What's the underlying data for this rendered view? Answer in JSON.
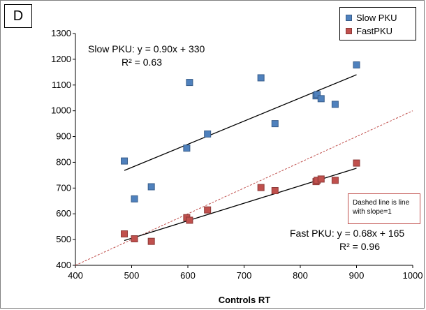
{
  "panel_label": "D",
  "chart_data": {
    "type": "scatter",
    "xlabel": "Controls RT",
    "ylabel": "",
    "xlim": [
      400,
      1000
    ],
    "ylim": [
      400,
      1300
    ],
    "xticks": [
      400,
      500,
      600,
      700,
      800,
      900,
      1000
    ],
    "yticks": [
      400,
      500,
      600,
      700,
      800,
      900,
      1000,
      1100,
      1200,
      1300
    ],
    "grid": false,
    "legend_position": "top-right",
    "series": [
      {
        "name": "Slow PKU",
        "color": "#4f81bd",
        "edge_color": "#385d8a",
        "marker": "square",
        "x": [
          487,
          505,
          535,
          598,
          603,
          635,
          730,
          755,
          828,
          830,
          837,
          862,
          900
        ],
        "y": [
          805,
          658,
          705,
          855,
          1110,
          910,
          1128,
          950,
          1058,
          1063,
          1047,
          1025,
          1178
        ],
        "trendline": {
          "slope": 0.9,
          "intercept": 330,
          "x_range": [
            487,
            900
          ]
        },
        "equation": "Slow PKU: y = 0.90x + 330",
        "r_squared": "R² = 0.63"
      },
      {
        "name": "FastPKU",
        "color": "#c0504d",
        "edge_color": "#8c3836",
        "marker": "square",
        "x": [
          487,
          505,
          535,
          598,
          603,
          635,
          730,
          755,
          828,
          830,
          837,
          862,
          900
        ],
        "y": [
          522,
          503,
          493,
          585,
          575,
          615,
          702,
          690,
          725,
          730,
          735,
          730,
          797
        ],
        "trendline": {
          "slope": 0.68,
          "intercept": 165,
          "x_range": [
            487,
            900
          ]
        },
        "equation": "Fast PKU: y = 0.68x + 165",
        "r_squared": "R² = 0.96"
      }
    ],
    "reference_line": {
      "slope": 1,
      "intercept": 0,
      "style": "dashed",
      "color": "#c0504d"
    },
    "annotation": "Dashed line is line with slope=1"
  }
}
